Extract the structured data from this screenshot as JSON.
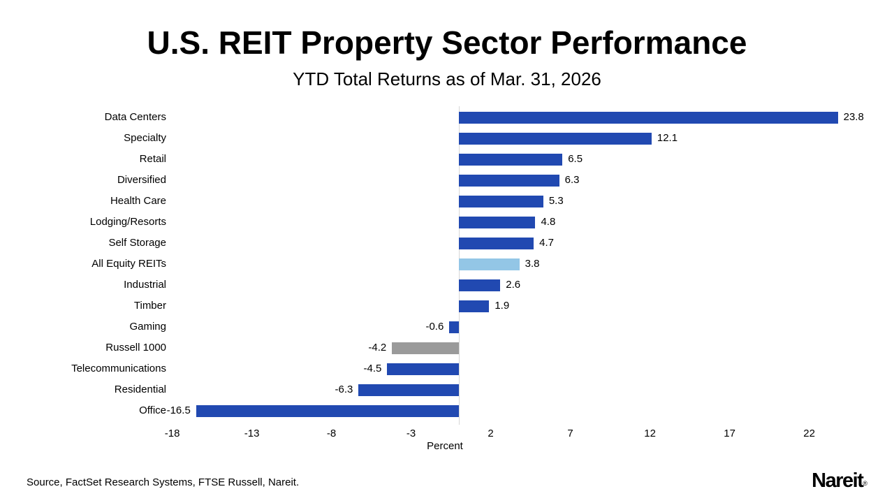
{
  "page": {
    "title": "U.S. REIT Property Sector Performance",
    "subtitle": "YTD Total Returns as of Mar. 31, 2026",
    "source_note": "Source, FactSet Research Systems, FTSE Russell, Nareit.",
    "logo_text": "Nareit",
    "logo_registered": "®"
  },
  "colors": {
    "bar_primary": "#2149b1",
    "bar_highlight": "#93c6e6",
    "bar_benchmark": "#9a9a9a",
    "axis_line": "#d6d6d6",
    "text": "#000000",
    "background": "#ffffff"
  },
  "chart_data": {
    "type": "bar",
    "orientation": "horizontal",
    "title": "U.S. REIT Property Sector Performance",
    "subtitle": "YTD Total Returns as of Mar. 31, 2026",
    "xlabel": "Percent",
    "x_ticks": [
      -18,
      -13,
      -8,
      -3,
      2,
      7,
      12,
      17,
      22
    ],
    "xlim": [
      -20,
      25.5
    ],
    "grid": false,
    "legend": "none",
    "value_label_format": "one-decimal",
    "categories": [
      "Data Centers",
      "Specialty",
      "Retail",
      "Diversified",
      "Health Care",
      "Lodging/Resorts",
      "Self Storage",
      "All Equity REITs",
      "Industrial",
      "Timber",
      "Gaming",
      "Russell 1000",
      "Telecommunications",
      "Residential",
      "Office"
    ],
    "values": [
      23.8,
      12.1,
      6.5,
      6.3,
      5.3,
      4.8,
      4.7,
      3.8,
      2.6,
      1.9,
      -0.6,
      -4.2,
      -4.5,
      -6.3,
      -16.5
    ],
    "bar_styles": [
      "primary",
      "primary",
      "primary",
      "primary",
      "primary",
      "primary",
      "primary",
      "highlight",
      "primary",
      "primary",
      "primary",
      "benchmark",
      "primary",
      "primary",
      "primary"
    ],
    "highlight_category": "All Equity REITs",
    "benchmark_category": "Russell 1000"
  }
}
